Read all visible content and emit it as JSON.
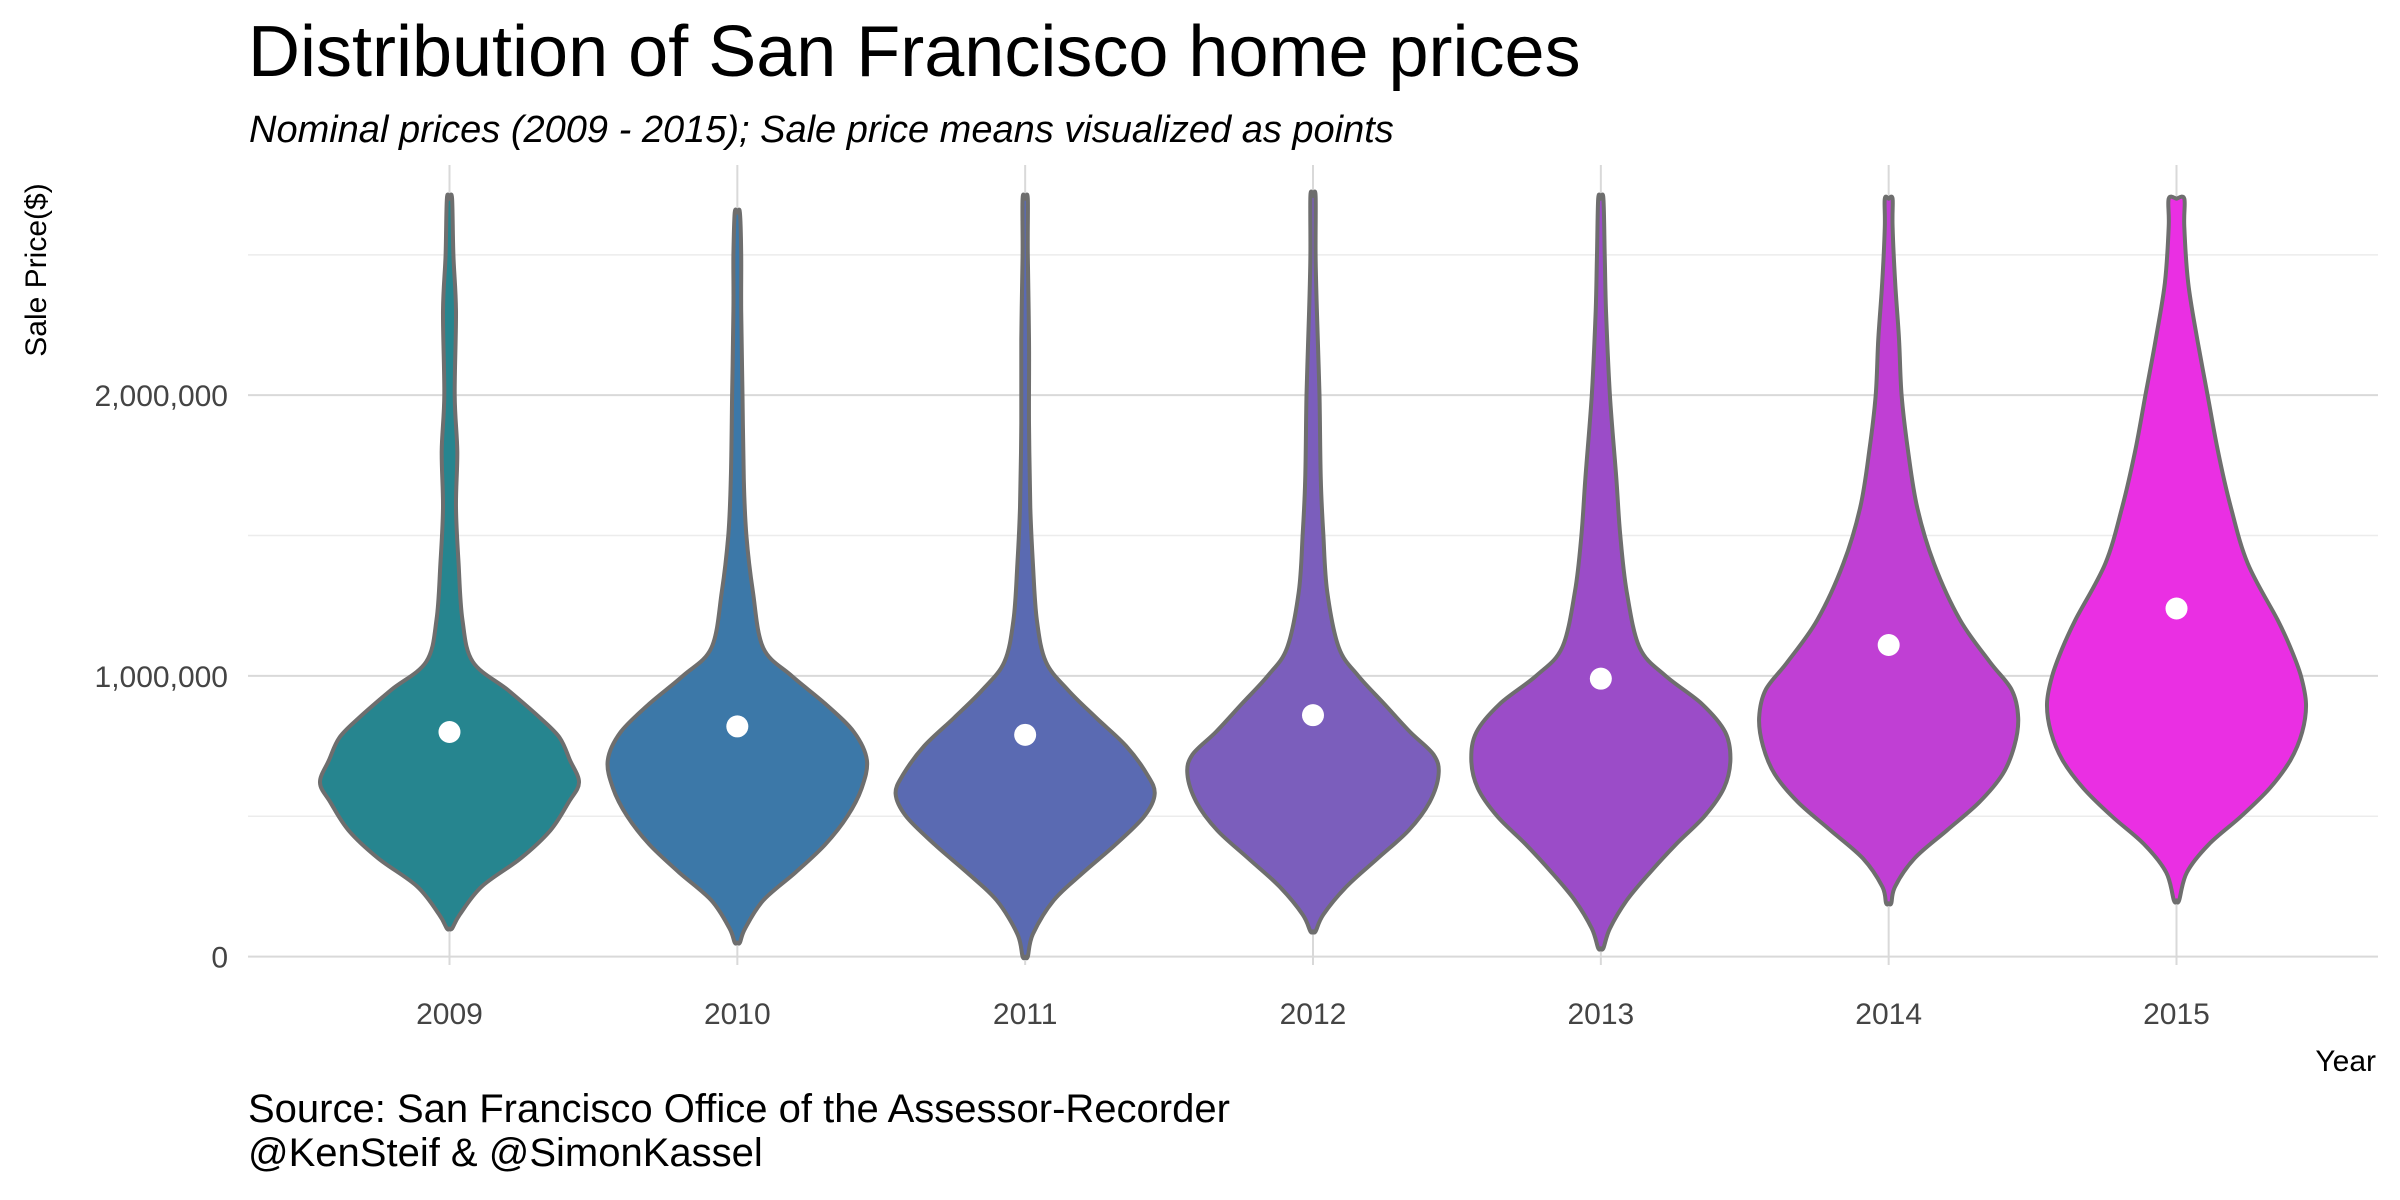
{
  "chart_data": {
    "type": "violin",
    "title": "Distribution of San Francisco home prices",
    "subtitle": "Nominal prices (2009 - 2015); Sale price means visualized as points",
    "xlabel": "Year",
    "ylabel": "Sale Price($)",
    "ylim": [
      -30000,
      2820000
    ],
    "yticks": [
      {
        "value": 0,
        "label": "0"
      },
      {
        "value": 1000000,
        "label": "1,000,000"
      },
      {
        "value": 2000000,
        "label": "2,000,000"
      }
    ],
    "grid": true,
    "legend": "none",
    "caption_lines": [
      "Source: San Francisco Office of the Assessor-Recorder",
      "@KenSteif & @SimonKassel"
    ],
    "series": [
      {
        "category": "2009",
        "color": "#26858F",
        "min": 100000,
        "max": 2700000,
        "mean": 800000,
        "profile": [
          [
            100000,
            0.02
          ],
          [
            150000,
            0.08
          ],
          [
            250000,
            0.25
          ],
          [
            350000,
            0.55
          ],
          [
            450000,
            0.78
          ],
          [
            550000,
            0.92
          ],
          [
            620000,
            1.0
          ],
          [
            700000,
            0.93
          ],
          [
            780000,
            0.85
          ],
          [
            850000,
            0.7
          ],
          [
            950000,
            0.45
          ],
          [
            1050000,
            0.18
          ],
          [
            1200000,
            0.1
          ],
          [
            1400000,
            0.07
          ],
          [
            1600000,
            0.05
          ],
          [
            1800000,
            0.06
          ],
          [
            2000000,
            0.04
          ],
          [
            2300000,
            0.05
          ],
          [
            2500000,
            0.03
          ],
          [
            2700000,
            0.02
          ]
        ]
      },
      {
        "category": "2010",
        "color": "#3C78A8",
        "min": 50000,
        "max": 2650000,
        "mean": 820000,
        "profile": [
          [
            50000,
            0.02
          ],
          [
            100000,
            0.06
          ],
          [
            200000,
            0.2
          ],
          [
            300000,
            0.45
          ],
          [
            400000,
            0.68
          ],
          [
            500000,
            0.85
          ],
          [
            600000,
            0.96
          ],
          [
            700000,
            1.0
          ],
          [
            800000,
            0.9
          ],
          [
            900000,
            0.68
          ],
          [
            1000000,
            0.42
          ],
          [
            1100000,
            0.2
          ],
          [
            1300000,
            0.12
          ],
          [
            1500000,
            0.07
          ],
          [
            1700000,
            0.05
          ],
          [
            2000000,
            0.04
          ],
          [
            2300000,
            0.03
          ],
          [
            2500000,
            0.03
          ],
          [
            2650000,
            0.02
          ]
        ]
      },
      {
        "category": "2011",
        "color": "#5A6AB2",
        "min": 0,
        "max": 2700000,
        "mean": 790000,
        "profile": [
          [
            0,
            0.02
          ],
          [
            80000,
            0.06
          ],
          [
            200000,
            0.22
          ],
          [
            300000,
            0.45
          ],
          [
            400000,
            0.7
          ],
          [
            500000,
            0.92
          ],
          [
            580000,
            1.0
          ],
          [
            650000,
            0.94
          ],
          [
            750000,
            0.78
          ],
          [
            850000,
            0.55
          ],
          [
            950000,
            0.33
          ],
          [
            1050000,
            0.16
          ],
          [
            1200000,
            0.09
          ],
          [
            1400000,
            0.06
          ],
          [
            1600000,
            0.04
          ],
          [
            1900000,
            0.03
          ],
          [
            2200000,
            0.03
          ],
          [
            2500000,
            0.02
          ],
          [
            2700000,
            0.02
          ]
        ]
      },
      {
        "category": "2012",
        "color": "#7B5EBC",
        "min": 90000,
        "max": 2710000,
        "mean": 860000,
        "profile": [
          [
            90000,
            0.02
          ],
          [
            150000,
            0.08
          ],
          [
            250000,
            0.26
          ],
          [
            350000,
            0.5
          ],
          [
            450000,
            0.74
          ],
          [
            550000,
            0.9
          ],
          [
            650000,
            0.97
          ],
          [
            720000,
            0.93
          ],
          [
            800000,
            0.75
          ],
          [
            900000,
            0.55
          ],
          [
            1000000,
            0.35
          ],
          [
            1100000,
            0.2
          ],
          [
            1300000,
            0.11
          ],
          [
            1500000,
            0.08
          ],
          [
            1700000,
            0.06
          ],
          [
            2000000,
            0.05
          ],
          [
            2300000,
            0.03
          ],
          [
            2500000,
            0.02
          ],
          [
            2710000,
            0.02
          ]
        ]
      },
      {
        "category": "2013",
        "color": "#9B4CC8",
        "min": 30000,
        "max": 2700000,
        "mean": 990000,
        "profile": [
          [
            30000,
            0.02
          ],
          [
            100000,
            0.07
          ],
          [
            200000,
            0.2
          ],
          [
            300000,
            0.38
          ],
          [
            400000,
            0.58
          ],
          [
            500000,
            0.8
          ],
          [
            600000,
            0.95
          ],
          [
            700000,
            1.0
          ],
          [
            800000,
            0.96
          ],
          [
            900000,
            0.78
          ],
          [
            1000000,
            0.5
          ],
          [
            1100000,
            0.3
          ],
          [
            1300000,
            0.2
          ],
          [
            1500000,
            0.15
          ],
          [
            1700000,
            0.12
          ],
          [
            2000000,
            0.07
          ],
          [
            2300000,
            0.04
          ],
          [
            2500000,
            0.03
          ],
          [
            2700000,
            0.02
          ]
        ]
      },
      {
        "category": "2014",
        "color": "#C03FD4",
        "min": 190000,
        "max": 2700000,
        "mean": 1110000,
        "profile": [
          [
            190000,
            0.02
          ],
          [
            250000,
            0.05
          ],
          [
            350000,
            0.2
          ],
          [
            450000,
            0.45
          ],
          [
            550000,
            0.7
          ],
          [
            650000,
            0.88
          ],
          [
            750000,
            0.97
          ],
          [
            850000,
            1.0
          ],
          [
            950000,
            0.95
          ],
          [
            1050000,
            0.78
          ],
          [
            1200000,
            0.55
          ],
          [
            1400000,
            0.35
          ],
          [
            1600000,
            0.22
          ],
          [
            1800000,
            0.15
          ],
          [
            2000000,
            0.1
          ],
          [
            2200000,
            0.08
          ],
          [
            2400000,
            0.05
          ],
          [
            2600000,
            0.03
          ],
          [
            2700000,
            0.03
          ]
        ]
      },
      {
        "category": "2015",
        "color": "#EA2FE3",
        "min": 200000,
        "max": 2700000,
        "mean": 1240000,
        "profile": [
          [
            200000,
            0.02
          ],
          [
            300000,
            0.08
          ],
          [
            400000,
            0.25
          ],
          [
            500000,
            0.5
          ],
          [
            600000,
            0.72
          ],
          [
            700000,
            0.88
          ],
          [
            800000,
            0.97
          ],
          [
            900000,
            1.0
          ],
          [
            1000000,
            0.96
          ],
          [
            1100000,
            0.88
          ],
          [
            1200000,
            0.78
          ],
          [
            1400000,
            0.55
          ],
          [
            1600000,
            0.42
          ],
          [
            1800000,
            0.32
          ],
          [
            2000000,
            0.24
          ],
          [
            2200000,
            0.16
          ],
          [
            2400000,
            0.09
          ],
          [
            2600000,
            0.06
          ],
          [
            2700000,
            0.06
          ]
        ]
      }
    ]
  }
}
